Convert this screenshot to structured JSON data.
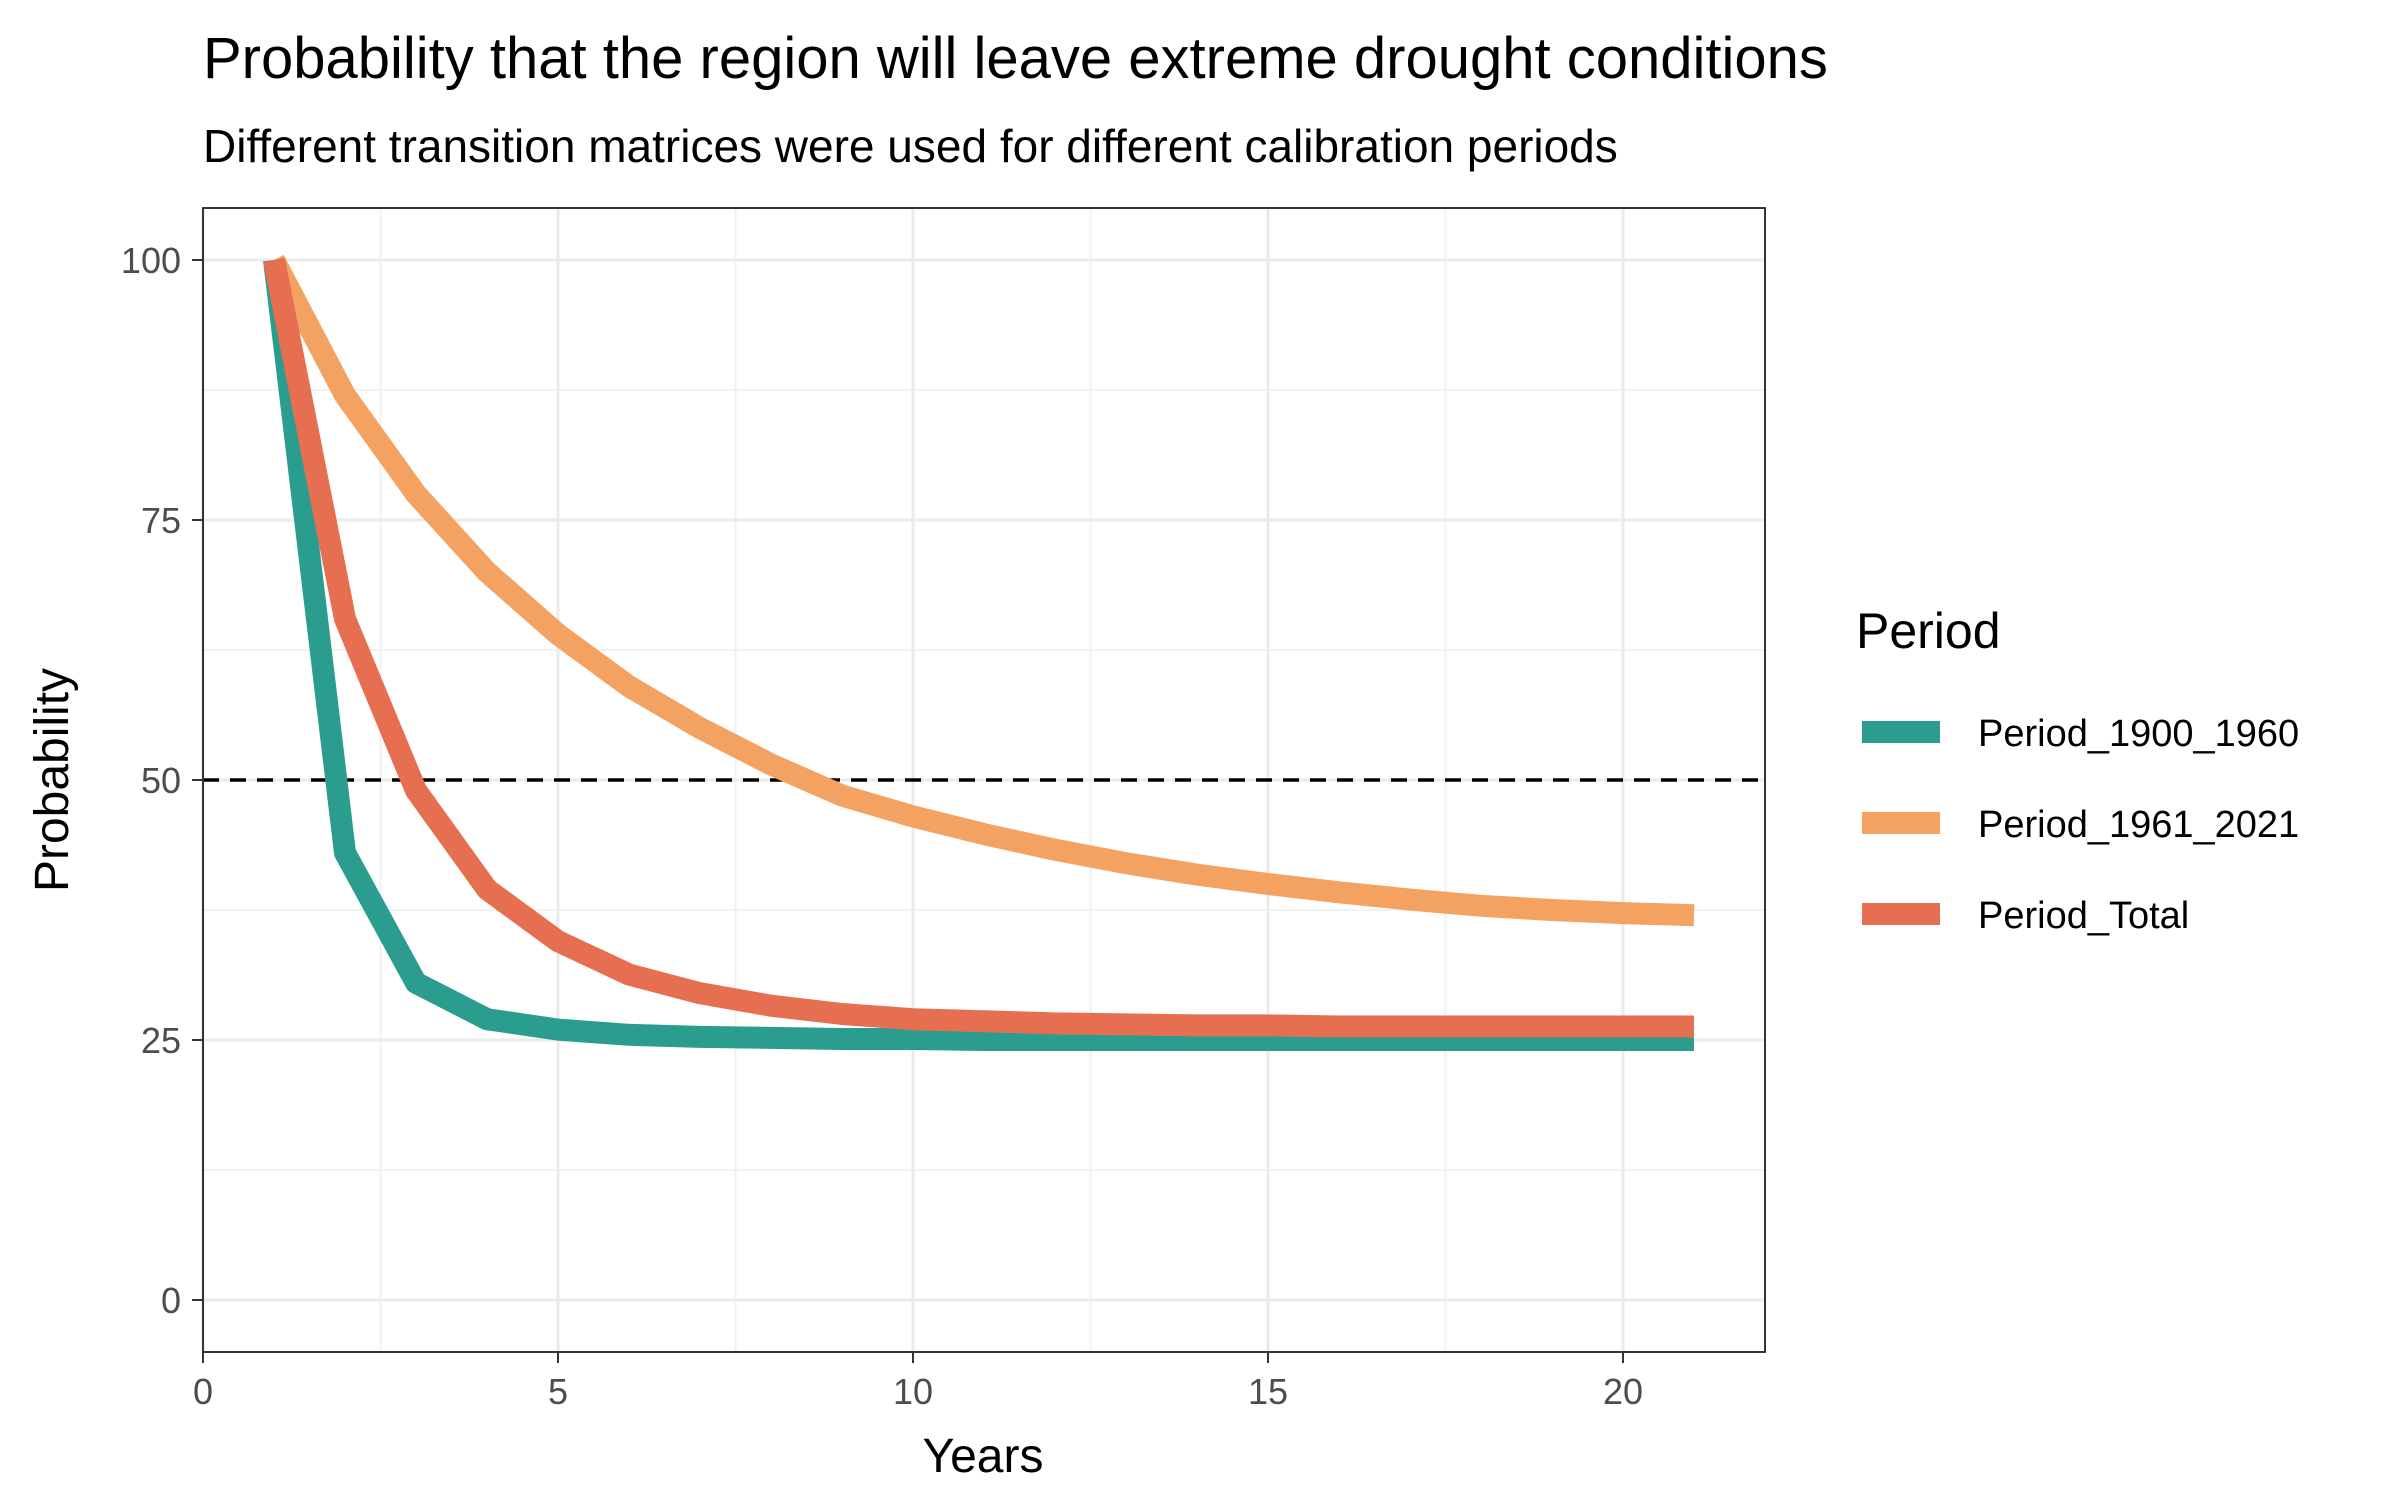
{
  "chart_data": {
    "type": "line",
    "title": "Probability that the region will leave extreme drought conditions",
    "subtitle": "Different transition matrices were used for different calibration periods",
    "xlabel": "Years",
    "ylabel": "Probability",
    "xlim": [
      0,
      22
    ],
    "ylim": [
      -5,
      105
    ],
    "xticks": [
      0,
      5,
      10,
      15,
      20
    ],
    "yticks": [
      0,
      25,
      50,
      75,
      100
    ],
    "grid": true,
    "reference_line": {
      "y": 50,
      "style": "dashed",
      "color": "#000000"
    },
    "legend": {
      "title": "Period",
      "position": "right"
    },
    "x": [
      1,
      2,
      3,
      4,
      5,
      6,
      7,
      8,
      9,
      10,
      11,
      12,
      13,
      14,
      15,
      16,
      17,
      18,
      19,
      20,
      21
    ],
    "series": [
      {
        "name": "Period_1900_1960",
        "color": "#2a9d8f",
        "values": [
          100,
          43,
          30.5,
          27,
          26,
          25.5,
          25.3,
          25.2,
          25.1,
          25.1,
          25,
          25,
          25,
          25,
          25,
          25,
          25,
          25,
          25,
          25,
          25
        ]
      },
      {
        "name": "Period_1961_2021",
        "color": "#f4a261",
        "values": [
          100,
          87,
          77.5,
          70,
          64,
          59,
          55,
          51.5,
          48.5,
          46.5,
          44.8,
          43.3,
          42,
          40.9,
          40,
          39.2,
          38.5,
          37.9,
          37.5,
          37.2,
          37
        ]
      },
      {
        "name": "Period_Total",
        "color": "#e76f51",
        "values": [
          100,
          65.5,
          49,
          39.5,
          34.5,
          31.3,
          29.5,
          28.3,
          27.5,
          27,
          26.8,
          26.6,
          26.5,
          26.4,
          26.4,
          26.3,
          26.3,
          26.3,
          26.3,
          26.3,
          26.3
        ]
      }
    ]
  }
}
